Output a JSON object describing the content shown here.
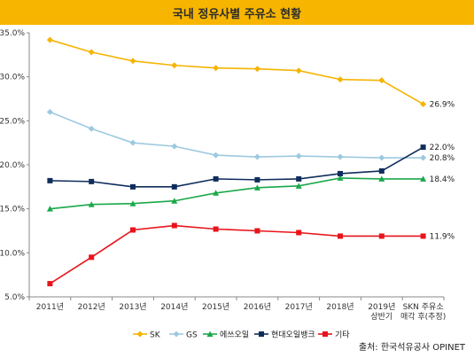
{
  "header": {
    "title": "국내 정유사별 주유소 현황"
  },
  "source": "출처: 한국석유공사 OPINET",
  "chart_data": {
    "type": "line",
    "title": "국내 정유사별 주유소 현황",
    "categories": [
      "2011년",
      "2012년",
      "2013년",
      "2014년",
      "2015년",
      "2016년",
      "2017년",
      "2018년",
      "2019년\n상반기",
      "SKN 주유소\n매각 후(추정)"
    ],
    "ylim": [
      5.0,
      35.0
    ],
    "yticks": [
      "5.0%",
      "10.0%",
      "15.0%",
      "20.0%",
      "25.0%",
      "30.0%",
      "35.0%"
    ],
    "grid": false,
    "legend_position": "bottom",
    "series": [
      {
        "name": "SK",
        "color": "#f5b400",
        "marker": "diamond",
        "values": [
          34.2,
          32.8,
          31.8,
          31.3,
          31.0,
          30.9,
          30.7,
          29.7,
          29.6,
          26.9
        ],
        "end_label": "26.9%"
      },
      {
        "name": "GS",
        "color": "#9dc9e0",
        "marker": "diamond",
        "values": [
          26.0,
          24.1,
          22.5,
          22.1,
          21.1,
          20.9,
          21.0,
          20.9,
          20.8,
          20.8
        ],
        "end_label": "20.8%"
      },
      {
        "name": "에쓰오일",
        "color": "#1aa84a",
        "marker": "triangle",
        "values": [
          15.0,
          15.5,
          15.6,
          15.9,
          16.8,
          17.4,
          17.6,
          18.5,
          18.4,
          18.4
        ],
        "end_label": "18.4%"
      },
      {
        "name": "현대오일뱅크",
        "color": "#0f2d5c",
        "marker": "square",
        "values": [
          18.2,
          18.1,
          17.5,
          17.5,
          18.4,
          18.3,
          18.4,
          19.0,
          19.3,
          22.0
        ],
        "end_label": "22.0%"
      },
      {
        "name": "기타",
        "color": "#e8141b",
        "marker": "square",
        "values": [
          6.5,
          9.5,
          12.6,
          13.1,
          12.7,
          12.5,
          12.3,
          11.9,
          11.9,
          11.9
        ],
        "end_label": "11.9%"
      }
    ]
  }
}
